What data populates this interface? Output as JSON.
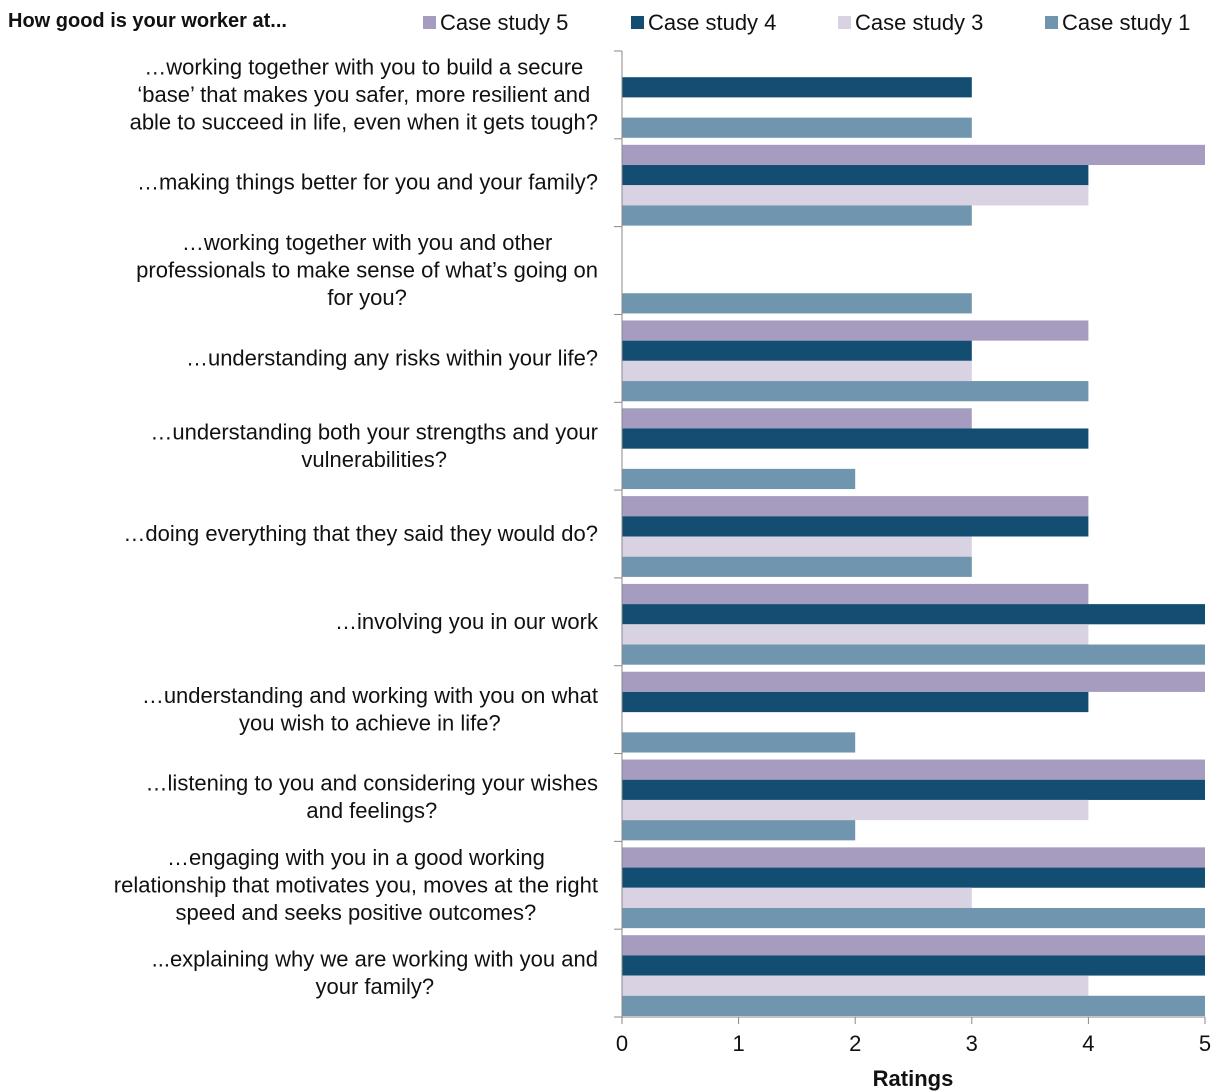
{
  "chart_data": {
    "type": "bar",
    "orientation": "horizontal",
    "title": "How good is your worker at...",
    "xlabel": "Ratings",
    "ylabel": "",
    "xlim": [
      0,
      5
    ],
    "ticks": [
      "0",
      "1",
      "2",
      "3",
      "4",
      "5"
    ],
    "grid": false,
    "legend_position": "top",
    "categories": [
      [
        "…working together with you to build a secure",
        "‘base’ that makes you safer, more resilient and",
        "able to succeed in life, even when it gets tough?"
      ],
      [
        "…making things better for you and your family?"
      ],
      [
        "…working together with you and other",
        "professionals to make sense of what’s going on",
        "for you?"
      ],
      [
        "…understanding any risks within your life?"
      ],
      [
        "…understanding both your strengths and your",
        "vulnerabilities?"
      ],
      [
        "…doing everything that they said they would do?"
      ],
      [
        "…involving you in our work"
      ],
      [
        "…understanding and working with you on what",
        "you wish to achieve in life?"
      ],
      [
        "…listening to you and considering your wishes",
        "and feelings?"
      ],
      [
        "…engaging with you in a good working",
        "relationship that motivates you, moves at the right",
        "speed and seeks positive outcomes?"
      ],
      [
        "...explaining why we are working with you and",
        "your family?"
      ]
    ],
    "series": [
      {
        "name": "Case study 5",
        "color": "#a69cc0",
        "values": [
          null,
          5,
          null,
          4,
          3,
          4,
          4,
          5,
          5,
          5,
          5
        ]
      },
      {
        "name": "Case study 4",
        "color": "#134e72",
        "values": [
          3,
          4,
          null,
          3,
          4,
          4,
          5,
          4,
          5,
          5,
          5
        ]
      },
      {
        "name": "Case study 3",
        "color": "#d8d2e2",
        "values": [
          null,
          4,
          null,
          3,
          null,
          3,
          4,
          null,
          4,
          3,
          4
        ]
      },
      {
        "name": "Case study 1",
        "color": "#6f96ae",
        "values": [
          3,
          3,
          3,
          4,
          2,
          3,
          5,
          2,
          2,
          5,
          5
        ]
      }
    ],
    "legend_order": [
      "Case study 5",
      "Case study 4",
      "Case study 3",
      "Case study 1"
    ]
  }
}
